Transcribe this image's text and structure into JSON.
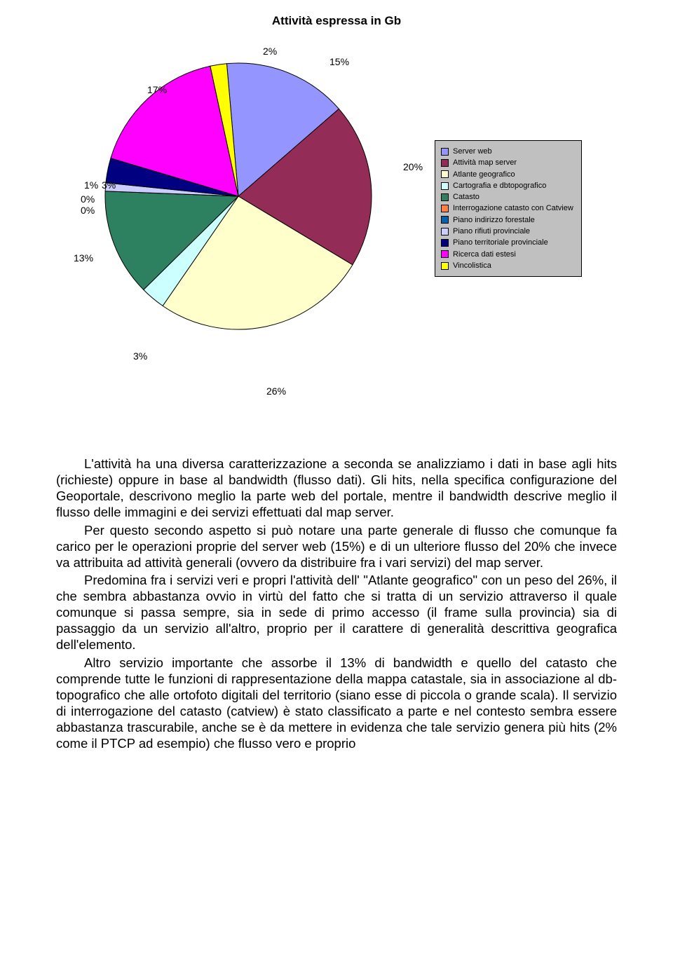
{
  "chart": {
    "type": "pie",
    "title": "Attività espressa in Gb",
    "title_fontsize": 17,
    "background_color": "#ffffff",
    "legend_background": "#c0c0c0",
    "legend_border": "#000000",
    "slices": [
      {
        "label": "Server web",
        "value": 15,
        "color": "#9595ff",
        "pct_text": "15%"
      },
      {
        "label": "Attività map server",
        "value": 20,
        "color": "#932c56",
        "pct_text": "20%"
      },
      {
        "label": "Atlante geografico",
        "value": 26,
        "color": "#ffffcc",
        "pct_text": "26%"
      },
      {
        "label": "Cartografia e dbtopografico",
        "value": 3,
        "color": "#ccffff",
        "pct_text": "3%"
      },
      {
        "label": "Catasto",
        "value": 13,
        "color": "#2e8160",
        "pct_text": "13%"
      },
      {
        "label": "Interrogazione catasto con Catview",
        "value": 0,
        "color": "#ff8040",
        "pct_text": "0%"
      },
      {
        "label": "Piano indirizzo forestale",
        "value": 0,
        "color": "#0062ac",
        "pct_text": "0%"
      },
      {
        "label": "Piano rifiuti provinciale",
        "value": 1,
        "color": "#cccdff",
        "pct_text": "1%"
      },
      {
        "label": "Piano territoriale provinciale",
        "value": 3,
        "color": "#000080",
        "pct_text": "3%"
      },
      {
        "label": "Ricerca dati estesi",
        "value": 17,
        "color": "#ff00ff",
        "pct_text": "17%"
      },
      {
        "label": "Vincolistica",
        "value": 2,
        "color": "#ffff00",
        "pct_text": "2%"
      }
    ],
    "edge_color": "#000000",
    "label_color": "#000000",
    "label_fontsize": 14,
    "legend_fontsize": 11
  },
  "paragraphs": {
    "p1": "L'attività ha una diversa caratterizzazione a seconda se analizziamo i dati in base agli hits (richieste) oppure in base al bandwidth (flusso dati). Gli hits, nella specifica configurazione del Geoportale, descrivono meglio la parte web del portale, mentre il bandwidth descrive meglio il flusso delle immagini e dei servizi effettuati dal map server.",
    "p2": "Per questo secondo aspetto si può notare una parte generale di flusso che comunque fa carico per le operazioni proprie del server web (15%) e di un ulteriore flusso del 20% che invece va attribuita ad attività generali (ovvero da distribuire fra i vari servizi) del map server.",
    "p3": "Predomina fra i servizi veri e propri l'attività dell' \"Atlante geografico\" con un peso del 26%, il che sembra abbastanza ovvio in virtù del fatto che si tratta di un servizio attraverso il quale comunque si passa sempre, sia in sede di primo accesso (il frame sulla provincia) sia di passaggio da un servizio all'altro, proprio per il carattere di generalità descrittiva geografica dell'elemento.",
    "p4": "Altro servizio importante che assorbe il 13% di bandwidth e quello del catasto che comprende tutte le funzioni di rappresentazione della mappa catastale, sia in associazione al db-topografico che alle ortofoto digitali del territorio (siano esse di piccola o grande scala). Il servizio di interrogazione del catasto (catview) è stato classificato a parte e nel contesto sembra essere abbastanza trascurabile, anche se è da mettere in evidenza che tale servizio genera più hits (2% come il PTCP ad esempio) che flusso vero e proprio"
  }
}
